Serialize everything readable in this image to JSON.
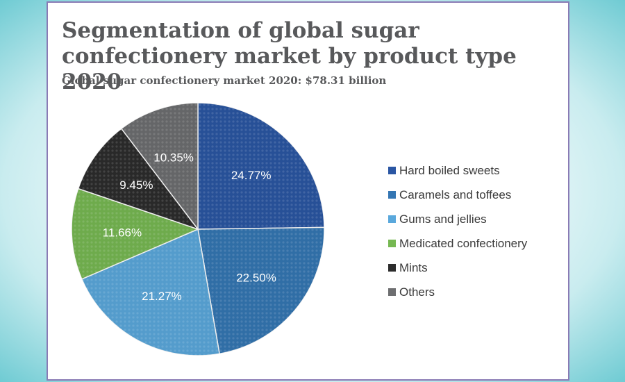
{
  "title": "Segmentation of global sugar confectionery market by product type 2020",
  "subtitle": "Global sugar confectionery market 2020: $78.31 billion",
  "chart_data": {
    "type": "pie",
    "title": "Segmentation of global sugar confectionery market by product type 2020",
    "subtitle": "Global sugar confectionery market 2020: $78.31 billion",
    "legend_position": "right",
    "slices": [
      {
        "label": "Hard boiled sweets",
        "value": 24.77,
        "value_label": "24.77%",
        "color": "#2a56a3"
      },
      {
        "label": "Caramels and toffees",
        "value": 22.5,
        "value_label": "22.50%",
        "color": "#3476b3"
      },
      {
        "label": "Gums and jellies",
        "value": 21.27,
        "value_label": "21.27%",
        "color": "#5aa8dc"
      },
      {
        "label": "Medicated confectionery",
        "value": 11.66,
        "value_label": "11.66%",
        "color": "#76b852"
      },
      {
        "label": "Mints",
        "value": 9.45,
        "value_label": "9.45%",
        "color": "#2c2c2c"
      },
      {
        "label": "Others",
        "value": 10.35,
        "value_label": "10.35%",
        "color": "#6d6e70"
      }
    ]
  }
}
